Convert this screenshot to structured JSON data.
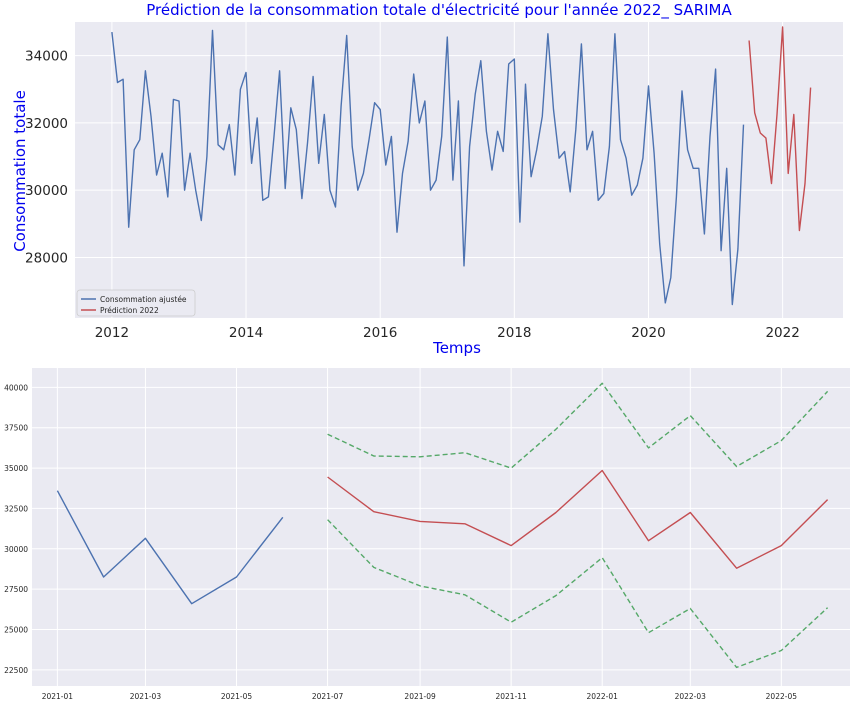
{
  "chart_data": [
    {
      "type": "line",
      "title": "Prédiction de la consommation totale d'électricité pour l'année 2022_ SARIMA",
      "xlabel": "Temps",
      "ylabel": "Consommation totale",
      "xlim": [
        2011.45,
        2022.9
      ],
      "ylim": [
        26200,
        35000
      ],
      "xticks": [
        2012,
        2014,
        2016,
        2018,
        2020,
        2022
      ],
      "yticks": [
        28000,
        30000,
        32000,
        34000
      ],
      "legend_position": "lower-left",
      "grid": true,
      "colors": {
        "title": "#0000ee",
        "axis_label": "#0000ee",
        "background": "#eaeaf2"
      },
      "series": [
        {
          "name": "Consommation ajustée",
          "color": "#4c72b0",
          "start": 2012.0,
          "step": 0.0833333,
          "values": [
            34700,
            33200,
            33300,
            28900,
            31200,
            31500,
            33550,
            32200,
            30450,
            31100,
            29800,
            32700,
            32650,
            30000,
            31100,
            30000,
            29100,
            31000,
            34750,
            31350,
            31200,
            31950,
            30450,
            33000,
            33500,
            30800,
            32150,
            29700,
            29800,
            31600,
            33550,
            30050,
            32450,
            31800,
            29750,
            31400,
            33380,
            30800,
            32250,
            30000,
            29500,
            32500,
            34600,
            31300,
            30000,
            30500,
            31500,
            32600,
            32400,
            30750,
            31600,
            28750,
            30500,
            31450,
            33450,
            32000,
            32650,
            30000,
            30300,
            31600,
            34550,
            30300,
            32650,
            27750,
            31300,
            32850,
            33850,
            31750,
            30600,
            31750,
            31150,
            33750,
            33900,
            29050,
            33150,
            30400,
            31200,
            32200,
            34650,
            32400,
            30950,
            31150,
            29950,
            31800,
            34350,
            31200,
            31750,
            29700,
            29900,
            31300,
            34650,
            31500,
            30950,
            29850,
            30150,
            30950,
            33100,
            31100,
            28400,
            26650,
            27400,
            29800,
            32950,
            31200,
            30650,
            30650,
            28700,
            31600,
            33600,
            28200,
            30650,
            26600,
            28250,
            31950
          ]
        },
        {
          "name": "Prédiction 2022",
          "color": "#c44e52",
          "start": 2021.5,
          "step": 0.0833333,
          "values": [
            34450,
            32300,
            31700,
            31550,
            30200,
            32250,
            34850,
            30500,
            32250,
            28800,
            30200,
            33050
          ]
        }
      ]
    },
    {
      "type": "line",
      "title": "",
      "xlabel": "",
      "ylabel": "",
      "xlim": [
        "2020-12-15",
        "2022-06-16"
      ],
      "ylim": [
        21500,
        41200
      ],
      "xticks": [
        "2021-01",
        "2021-03",
        "2021-05",
        "2021-07",
        "2021-09",
        "2021-11",
        "2022-01",
        "2022-03",
        "2022-05"
      ],
      "yticks": [
        22500,
        25000,
        27500,
        30000,
        32500,
        35000,
        37500,
        40000
      ],
      "grid": true,
      "colors": {
        "background": "#eaeaf2"
      },
      "series": [
        {
          "color": "#4c72b0",
          "style": "solid",
          "x": [
            "2021-01-01",
            "2021-02-01",
            "2021-03-01",
            "2021-04-01",
            "2021-05-01",
            "2021-06-01"
          ],
          "values": [
            33600,
            28250,
            30650,
            26600,
            28250,
            31950
          ]
        },
        {
          "color": "#c44e52",
          "style": "solid",
          "x": [
            "2021-07-01",
            "2021-08-01",
            "2021-09-01",
            "2021-10-01",
            "2021-11-01",
            "2021-12-01",
            "2022-01-01",
            "2022-02-01",
            "2022-03-01",
            "2022-04-01",
            "2022-05-01",
            "2022-06-01"
          ],
          "values": [
            34450,
            32300,
            31700,
            31550,
            30200,
            32250,
            34850,
            30500,
            32250,
            28800,
            30200,
            33050
          ]
        },
        {
          "color": "#55a868",
          "style": "dashed",
          "x": [
            "2021-07-01",
            "2021-08-01",
            "2021-09-01",
            "2021-10-01",
            "2021-11-01",
            "2021-12-01",
            "2022-01-01",
            "2022-02-01",
            "2022-03-01",
            "2022-04-01",
            "2022-05-01",
            "2022-06-01"
          ],
          "values": [
            37100,
            35750,
            35700,
            35950,
            35000,
            37400,
            40250,
            36250,
            38250,
            35100,
            36700,
            39750
          ]
        },
        {
          "color": "#55a868",
          "style": "dashed",
          "x": [
            "2021-07-01",
            "2021-08-01",
            "2021-09-01",
            "2021-10-01",
            "2021-11-01",
            "2021-12-01",
            "2022-01-01",
            "2022-02-01",
            "2022-03-01",
            "2022-04-01",
            "2022-05-01",
            "2022-06-01"
          ],
          "values": [
            31800,
            28850,
            27700,
            27150,
            25450,
            27100,
            29450,
            24800,
            26300,
            22650,
            23700,
            26350
          ]
        }
      ]
    }
  ]
}
